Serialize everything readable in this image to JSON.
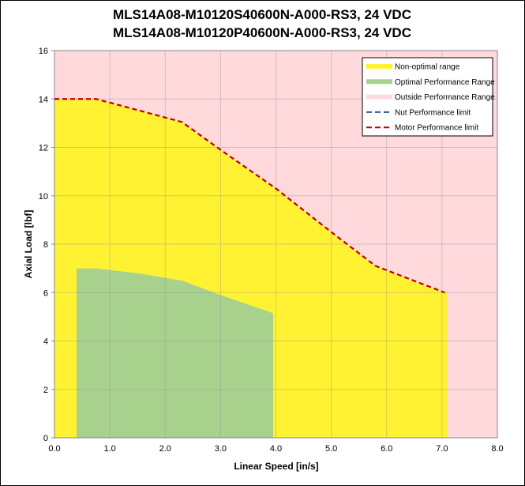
{
  "chart_data": {
    "type": "area",
    "title": [
      "MLS14A08-M10120S40600N-A000-RS3, 24 VDC",
      "MLS14A08-M10120P40600N-A000-RS3, 24 VDC"
    ],
    "xlabel": "Linear Speed [in/s]",
    "ylabel": "Axial Load [lbf]",
    "xlim": [
      0,
      8
    ],
    "ylim": [
      0,
      16
    ],
    "xticks": [
      "0.0",
      "1.0",
      "2.0",
      "3.0",
      "4.0",
      "5.0",
      "6.0",
      "7.0",
      "8.0"
    ],
    "yticks": [
      "0",
      "2",
      "4",
      "6",
      "8",
      "10",
      "12",
      "14",
      "16"
    ],
    "grid": true,
    "legend_position": "top-right",
    "series": [
      {
        "name": "Non-optimal range",
        "kind": "area",
        "color": "#FFF233",
        "points": [
          [
            0,
            14
          ],
          [
            0.75,
            14
          ],
          [
            1.0,
            13.85
          ],
          [
            2.3,
            13.05
          ],
          [
            3.0,
            11.9
          ],
          [
            4.0,
            10.3
          ],
          [
            5.0,
            8.5
          ],
          [
            5.8,
            7.1
          ],
          [
            7.05,
            6.0
          ],
          [
            7.1,
            6.0
          ]
        ]
      },
      {
        "name": "Optimal Performance Range",
        "kind": "area",
        "color": "#A9D18E",
        "points": [
          [
            0.4,
            7.0
          ],
          [
            0.75,
            7.0
          ],
          [
            1.5,
            6.8
          ],
          [
            2.3,
            6.5
          ],
          [
            3.0,
            5.9
          ],
          [
            3.95,
            5.15
          ]
        ]
      },
      {
        "name": "Outside Performance Range",
        "kind": "background",
        "color": "#FFD9DC"
      },
      {
        "name": "Nut Performance limit",
        "kind": "dashed-line",
        "color": "#2F5597",
        "points": []
      },
      {
        "name": "Motor Performance limit",
        "kind": "dashed-line",
        "color": "#C00000",
        "points": [
          [
            0,
            14
          ],
          [
            0.75,
            14
          ],
          [
            1.0,
            13.85
          ],
          [
            2.3,
            13.05
          ],
          [
            3.0,
            11.9
          ],
          [
            4.0,
            10.3
          ],
          [
            5.0,
            8.5
          ],
          [
            5.8,
            7.1
          ],
          [
            7.05,
            6.0
          ]
        ]
      }
    ]
  }
}
